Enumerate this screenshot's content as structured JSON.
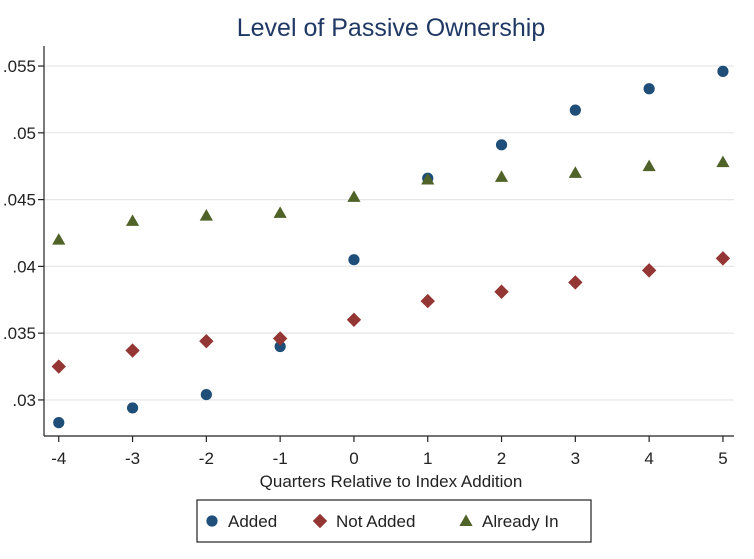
{
  "chart_data": {
    "type": "scatter",
    "title": "Level of Passive Ownership",
    "xlabel": "Quarters Relative to Index Addition",
    "ylabel": "",
    "xlim": [
      -4.2,
      5.15
    ],
    "ylim": [
      0.0273,
      0.0565
    ],
    "x_ticks": [
      -4,
      -3,
      -2,
      -1,
      0,
      1,
      2,
      3,
      4,
      5
    ],
    "x_tick_labels": [
      "-4",
      "-3",
      "-2",
      "-1",
      "0",
      "1",
      "2",
      "3",
      "4",
      "5"
    ],
    "y_ticks": [
      0.03,
      0.035,
      0.04,
      0.045,
      0.05,
      0.055
    ],
    "y_tick_labels": [
      ".03",
      ".035",
      ".04",
      ".045",
      ".05",
      ".055"
    ],
    "grid": true,
    "legend_position": "bottom",
    "x": [
      -4,
      -3,
      -2,
      -1,
      0,
      1,
      2,
      3,
      4,
      5
    ],
    "series": [
      {
        "name": "Added",
        "marker": "circle",
        "color": "#1f4e79",
        "values": [
          0.0283,
          0.0294,
          0.0304,
          0.034,
          0.0405,
          0.0466,
          0.0491,
          0.0517,
          0.0533,
          0.0546
        ]
      },
      {
        "name": "Not Added",
        "marker": "diamond",
        "color": "#943634",
        "values": [
          0.0325,
          0.0337,
          0.0344,
          0.0346,
          0.036,
          0.0374,
          0.0381,
          0.0388,
          0.0397,
          0.0406
        ]
      },
      {
        "name": "Already In",
        "marker": "triangle",
        "color": "#4f6228",
        "values": [
          0.042,
          0.0434,
          0.0438,
          0.044,
          0.0452,
          0.0465,
          0.0467,
          0.047,
          0.0475,
          0.0478
        ]
      }
    ]
  }
}
